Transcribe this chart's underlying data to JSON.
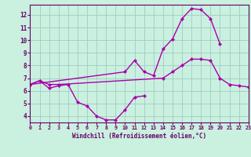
{
  "xlabel": "Windchill (Refroidissement éolien,°C)",
  "background_color": "#caf0e0",
  "grid_color": "#a0ccc0",
  "line_color": "#aa00aa",
  "c1_x": [
    0,
    1,
    2,
    3,
    4,
    5,
    6,
    7,
    8,
    9,
    10,
    11,
    12
  ],
  "c1_y": [
    6.5,
    6.8,
    6.2,
    6.4,
    6.5,
    5.1,
    4.8,
    4.0,
    3.7,
    3.7,
    4.5,
    5.5,
    5.6
  ],
  "c2_x": [
    0,
    10,
    11,
    12,
    13,
    14,
    15,
    16,
    17,
    18,
    19,
    20
  ],
  "c2_y": [
    6.5,
    7.5,
    8.4,
    7.5,
    7.2,
    9.3,
    10.1,
    11.7,
    12.5,
    12.4,
    11.7,
    9.7
  ],
  "c3_x": [
    0,
    1,
    2,
    3,
    14,
    15,
    16,
    17,
    18,
    19,
    20,
    21,
    22,
    23
  ],
  "c3_y": [
    6.5,
    6.8,
    6.5,
    6.5,
    7.0,
    7.5,
    8.0,
    8.5,
    8.5,
    8.4,
    7.0,
    6.5,
    6.4,
    6.3
  ],
  "ylim": [
    3.5,
    12.8
  ],
  "xlim": [
    0,
    23
  ],
  "yticks": [
    4,
    5,
    6,
    7,
    8,
    9,
    10,
    11,
    12
  ]
}
